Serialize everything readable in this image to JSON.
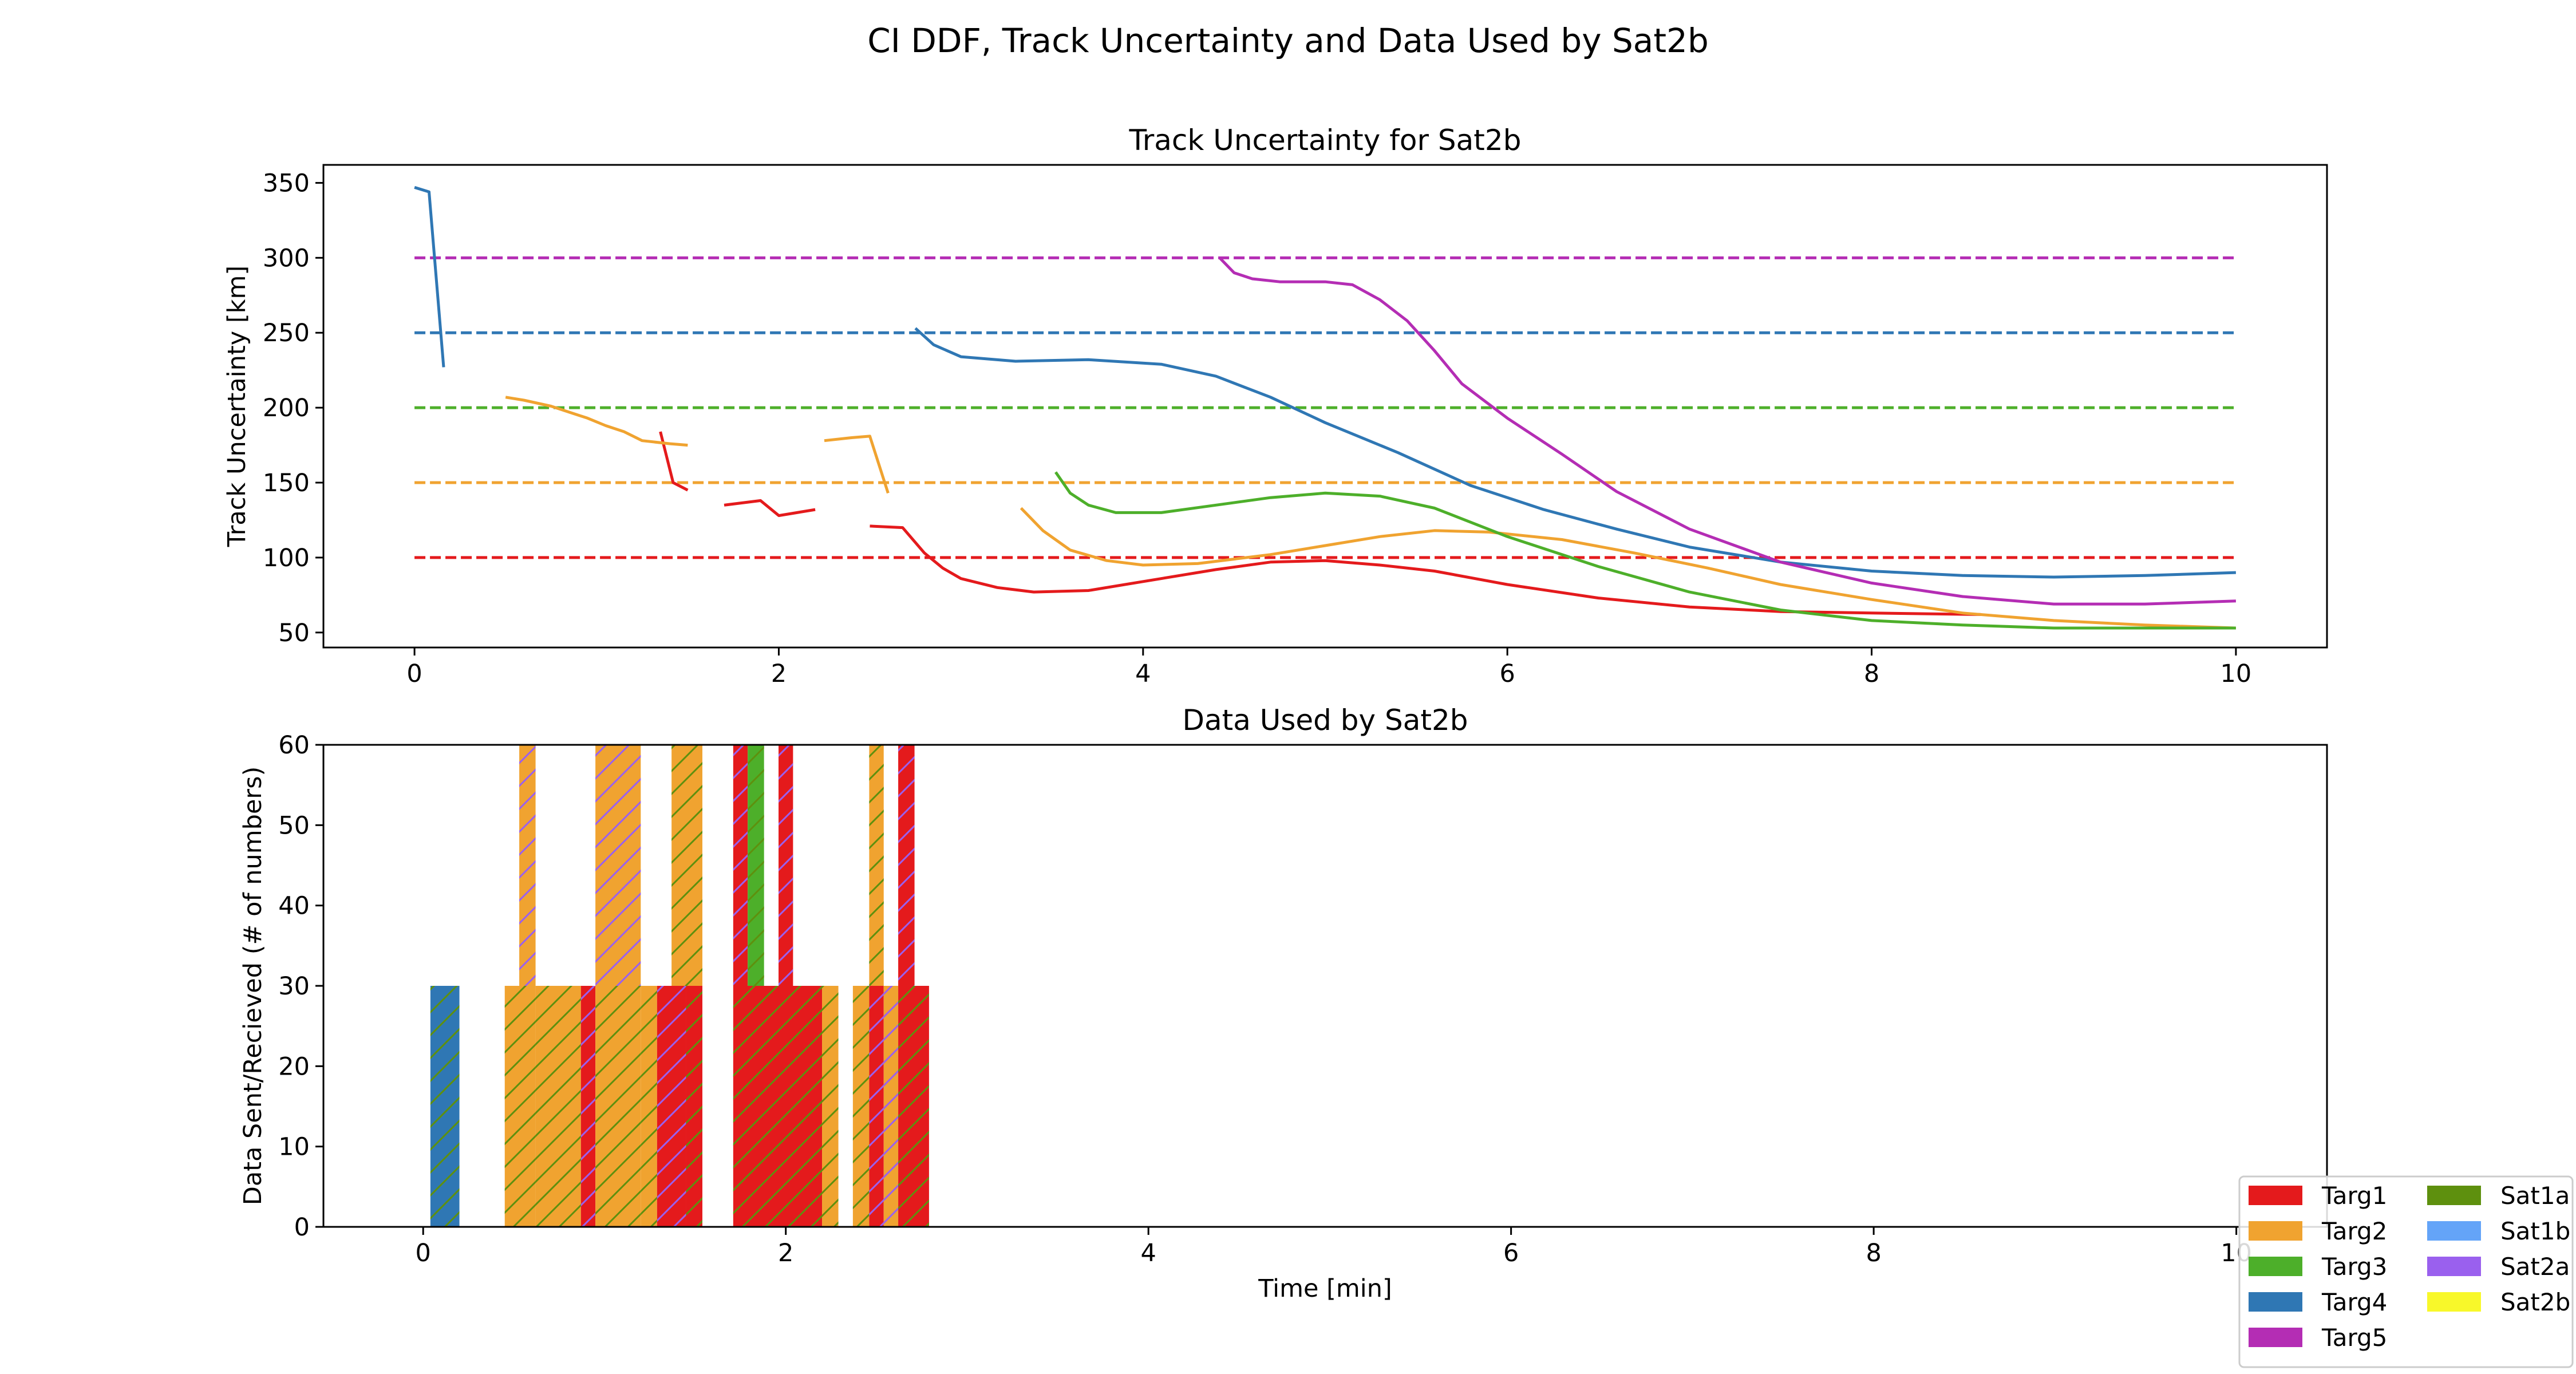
{
  "figure_title": "CI DDF, Track Uncertainty and Data Used by Sat2b",
  "colors": {
    "Targ1": "#e41a1c",
    "Targ2": "#f0a330",
    "Targ3": "#4daf2a",
    "Targ4": "#2f77b4",
    "Targ5": "#b42db4",
    "Sat1a": "#5e900e",
    "Sat1b": "#64a4f8",
    "Sat2a": "#9a60ee",
    "Sat2b": "#f8f82a"
  },
  "legend": {
    "placement": "bottom-right",
    "entries": [
      {
        "label": "Targ1",
        "color": "#e41a1c"
      },
      {
        "label": "Targ2",
        "color": "#f0a330"
      },
      {
        "label": "Targ3",
        "color": "#4daf2a"
      },
      {
        "label": "Targ4",
        "color": "#2f77b4"
      },
      {
        "label": "Targ5",
        "color": "#b42db4"
      },
      {
        "label": "Sat1a",
        "color": "#5e900e"
      },
      {
        "label": "Sat1b",
        "color": "#64a4f8"
      },
      {
        "label": "Sat2a",
        "color": "#9a60ee"
      },
      {
        "label": "Sat2b",
        "color": "#f8f82a"
      }
    ]
  },
  "chart_data": [
    {
      "type": "line",
      "title": "Track Uncertainty for Sat2b",
      "xlabel": "",
      "ylabel": "Track Uncertainty [km]",
      "xlim": [
        -0.5,
        10.5
      ],
      "ylim": [
        40,
        362
      ],
      "xticks": [
        "0",
        "2",
        "4",
        "6",
        "8",
        "10"
      ],
      "yticks": [
        "50",
        "100",
        "150",
        "200",
        "250",
        "300",
        "350"
      ],
      "grid": false,
      "thresholds": [
        {
          "target": "Targ1",
          "y": 100,
          "x": [
            0,
            10
          ],
          "style": "dashed"
        },
        {
          "target": "Targ2",
          "y": 150,
          "x": [
            0,
            10
          ],
          "style": "dashed"
        },
        {
          "target": "Targ3",
          "y": 200,
          "x": [
            0,
            10
          ],
          "style": "dashed"
        },
        {
          "target": "Targ4",
          "y": 250,
          "x": [
            0,
            10
          ],
          "style": "dashed"
        },
        {
          "target": "Targ5",
          "y": 300,
          "x": [
            0,
            10
          ],
          "style": "dashed"
        }
      ],
      "series": [
        {
          "target": "Targ1",
          "segments": [
            [
              [
                1.35,
                184
              ],
              [
                1.42,
                150
              ],
              [
                1.5,
                145
              ]
            ],
            [
              [
                1.7,
                135
              ],
              [
                1.9,
                138
              ],
              [
                2.0,
                128
              ],
              [
                2.2,
                132
              ]
            ],
            [
              [
                2.5,
                121
              ],
              [
                2.68,
                120
              ],
              [
                2.8,
                103
              ],
              [
                2.9,
                93
              ],
              [
                3.0,
                86
              ],
              [
                3.2,
                80
              ],
              [
                3.4,
                77
              ],
              [
                3.7,
                78
              ],
              [
                4.0,
                84
              ],
              [
                4.4,
                92
              ],
              [
                4.7,
                97
              ],
              [
                5.0,
                98
              ],
              [
                5.3,
                95
              ],
              [
                5.6,
                91
              ],
              [
                6.0,
                82
              ],
              [
                6.5,
                73
              ],
              [
                7.0,
                67
              ],
              [
                7.5,
                64
              ],
              [
                8.0,
                63
              ],
              [
                8.6,
                62
              ]
            ]
          ]
        },
        {
          "target": "Targ2",
          "segments": [
            [
              [
                0.5,
                207
              ],
              [
                0.6,
                205
              ],
              [
                0.75,
                201
              ],
              [
                0.85,
                197
              ],
              [
                0.95,
                193
              ],
              [
                1.05,
                188
              ],
              [
                1.15,
                184
              ],
              [
                1.25,
                178
              ],
              [
                1.4,
                176
              ],
              [
                1.5,
                175
              ]
            ],
            [
              [
                2.25,
                178
              ],
              [
                2.4,
                180
              ],
              [
                2.5,
                181
              ],
              [
                2.6,
                143
              ]
            ],
            [
              [
                3.33,
                133
              ],
              [
                3.45,
                118
              ],
              [
                3.6,
                105
              ],
              [
                3.8,
                98
              ],
              [
                4.0,
                95
              ],
              [
                4.3,
                96
              ],
              [
                4.7,
                102
              ],
              [
                5.0,
                108
              ],
              [
                5.3,
                114
              ],
              [
                5.6,
                118
              ],
              [
                5.9,
                117
              ],
              [
                6.3,
                112
              ],
              [
                6.7,
                103
              ],
              [
                7.1,
                93
              ],
              [
                7.5,
                82
              ],
              [
                8.0,
                72
              ],
              [
                8.5,
                63
              ],
              [
                9.0,
                58
              ],
              [
                9.5,
                55
              ],
              [
                10.0,
                53
              ]
            ]
          ]
        },
        {
          "target": "Targ3",
          "segments": [
            [
              [
                3.52,
                157
              ],
              [
                3.6,
                143
              ],
              [
                3.7,
                135
              ],
              [
                3.85,
                130
              ],
              [
                4.1,
                130
              ],
              [
                4.4,
                135
              ],
              [
                4.7,
                140
              ],
              [
                5.0,
                143
              ],
              [
                5.3,
                141
              ],
              [
                5.6,
                133
              ],
              [
                6.0,
                114
              ],
              [
                6.5,
                94
              ],
              [
                7.0,
                77
              ],
              [
                7.5,
                65
              ],
              [
                8.0,
                58
              ],
              [
                8.5,
                55
              ],
              [
                9.0,
                53
              ],
              [
                9.5,
                53
              ],
              [
                10.0,
                53
              ]
            ]
          ]
        },
        {
          "target": "Targ4",
          "segments": [
            [
              [
                0.0,
                347
              ],
              [
                0.08,
                344
              ],
              [
                0.16,
                227
              ]
            ],
            [
              [
                2.75,
                253
              ],
              [
                2.85,
                242
              ],
              [
                3.0,
                234
              ],
              [
                3.3,
                231
              ],
              [
                3.7,
                232
              ],
              [
                4.1,
                229
              ],
              [
                4.4,
                221
              ],
              [
                4.7,
                207
              ],
              [
                5.0,
                190
              ],
              [
                5.4,
                170
              ],
              [
                5.8,
                148
              ],
              [
                6.2,
                132
              ],
              [
                6.6,
                119
              ],
              [
                7.0,
                107
              ],
              [
                7.5,
                97
              ],
              [
                8.0,
                91
              ],
              [
                8.5,
                88
              ],
              [
                9.0,
                87
              ],
              [
                9.5,
                88
              ],
              [
                10.0,
                90
              ]
            ]
          ]
        },
        {
          "target": "Targ5",
          "segments": [
            [
              [
                4.42,
                300
              ],
              [
                4.5,
                290
              ],
              [
                4.6,
                286
              ],
              [
                4.75,
                284
              ],
              [
                5.0,
                284
              ],
              [
                5.15,
                282
              ],
              [
                5.3,
                272
              ],
              [
                5.45,
                258
              ],
              [
                5.6,
                238
              ],
              [
                5.75,
                216
              ],
              [
                6.0,
                193
              ],
              [
                6.3,
                169
              ],
              [
                6.6,
                144
              ],
              [
                7.0,
                119
              ],
              [
                7.5,
                97
              ],
              [
                8.0,
                83
              ],
              [
                8.5,
                74
              ],
              [
                9.0,
                69
              ],
              [
                9.5,
                69
              ],
              [
                10.0,
                71
              ]
            ]
          ]
        }
      ]
    },
    {
      "type": "bar",
      "title": "Data Used by Sat2b",
      "xlabel": "Time [min]",
      "ylabel": "Data Sent/Recieved (# of numbers)",
      "xlim": [
        -0.55,
        10.5
      ],
      "ylim": [
        0,
        60
      ],
      "xticks": [
        "0",
        "2",
        "4",
        "6",
        "8",
        "10"
      ],
      "yticks": [
        "0",
        "10",
        "20",
        "30",
        "40",
        "50",
        "60"
      ],
      "grid": false,
      "bars": [
        {
          "x0": 0.04,
          "x1": 0.2,
          "y0": 0,
          "y1": 30,
          "fill": "Targ4",
          "hatch": "Sat1a"
        },
        {
          "x0": 0.45,
          "x1": 0.62,
          "y0": 0,
          "y1": 30,
          "fill": "Targ2",
          "hatch": "Sat1a"
        },
        {
          "x0": 0.53,
          "x1": 0.62,
          "y0": 30,
          "y1": 60,
          "fill": "Targ2",
          "hatch": "Sat2a"
        },
        {
          "x0": 0.62,
          "x1": 0.87,
          "y0": 0,
          "y1": 30,
          "fill": "Targ2",
          "hatch": "Sat1a"
        },
        {
          "x0": 0.87,
          "x1": 0.95,
          "y0": 0,
          "y1": 30,
          "fill": "Targ1",
          "hatch": "Sat2a"
        },
        {
          "x0": 0.95,
          "x1": 1.2,
          "y0": 0,
          "y1": 30,
          "fill": "Targ2",
          "hatch": "Sat1a"
        },
        {
          "x0": 0.95,
          "x1": 1.2,
          "y0": 30,
          "y1": 60,
          "fill": "Targ2",
          "hatch": "Sat2a"
        },
        {
          "x0": 1.2,
          "x1": 1.29,
          "y0": 0,
          "y1": 30,
          "fill": "Targ2",
          "hatch": "Sat1a"
        },
        {
          "x0": 1.29,
          "x1": 1.45,
          "y0": 0,
          "y1": 30,
          "fill": "Targ1",
          "hatch": "Sat2a"
        },
        {
          "x0": 1.45,
          "x1": 1.54,
          "y0": 0,
          "y1": 30,
          "fill": "Targ1",
          "hatch": "Sat1a"
        },
        {
          "x0": 1.37,
          "x1": 1.54,
          "y0": 30,
          "y1": 60,
          "fill": "Targ2",
          "hatch": "Sat1a"
        },
        {
          "x0": 1.71,
          "x1": 2.2,
          "y0": 0,
          "y1": 30,
          "fill": "Targ1",
          "hatch": "Sat1a"
        },
        {
          "x0": 1.71,
          "x1": 1.79,
          "y0": 30,
          "y1": 60,
          "fill": "Targ1",
          "hatch": "Sat2a"
        },
        {
          "x0": 1.79,
          "x1": 1.88,
          "y0": 30,
          "y1": 60,
          "fill": "Targ3",
          "hatch": "Sat1a"
        },
        {
          "x0": 1.96,
          "x1": 2.04,
          "y0": 30,
          "y1": 60,
          "fill": "Targ1",
          "hatch": "Sat2a"
        },
        {
          "x0": 2.2,
          "x1": 2.29,
          "y0": 0,
          "y1": 30,
          "fill": "Targ2",
          "hatch": "Sat1a"
        },
        {
          "x0": 2.37,
          "x1": 2.46,
          "y0": 0,
          "y1": 30,
          "fill": "Targ2",
          "hatch": "Sat1a"
        },
        {
          "x0": 2.46,
          "x1": 2.54,
          "y0": 0,
          "y1": 30,
          "fill": "Targ1",
          "hatch": "Sat2a"
        },
        {
          "x0": 2.46,
          "x1": 2.54,
          "y0": 30,
          "y1": 60,
          "fill": "Targ2",
          "hatch": "Sat1a"
        },
        {
          "x0": 2.54,
          "x1": 2.62,
          "y0": 0,
          "y1": 30,
          "fill": "Targ2",
          "hatch": "Sat2a"
        },
        {
          "x0": 2.62,
          "x1": 2.79,
          "y0": 0,
          "y1": 30,
          "fill": "Targ1",
          "hatch": "Sat1a"
        },
        {
          "x0": 2.62,
          "x1": 2.71,
          "y0": 30,
          "y1": 60,
          "fill": "Targ1",
          "hatch": "Sat2a"
        }
      ]
    }
  ]
}
